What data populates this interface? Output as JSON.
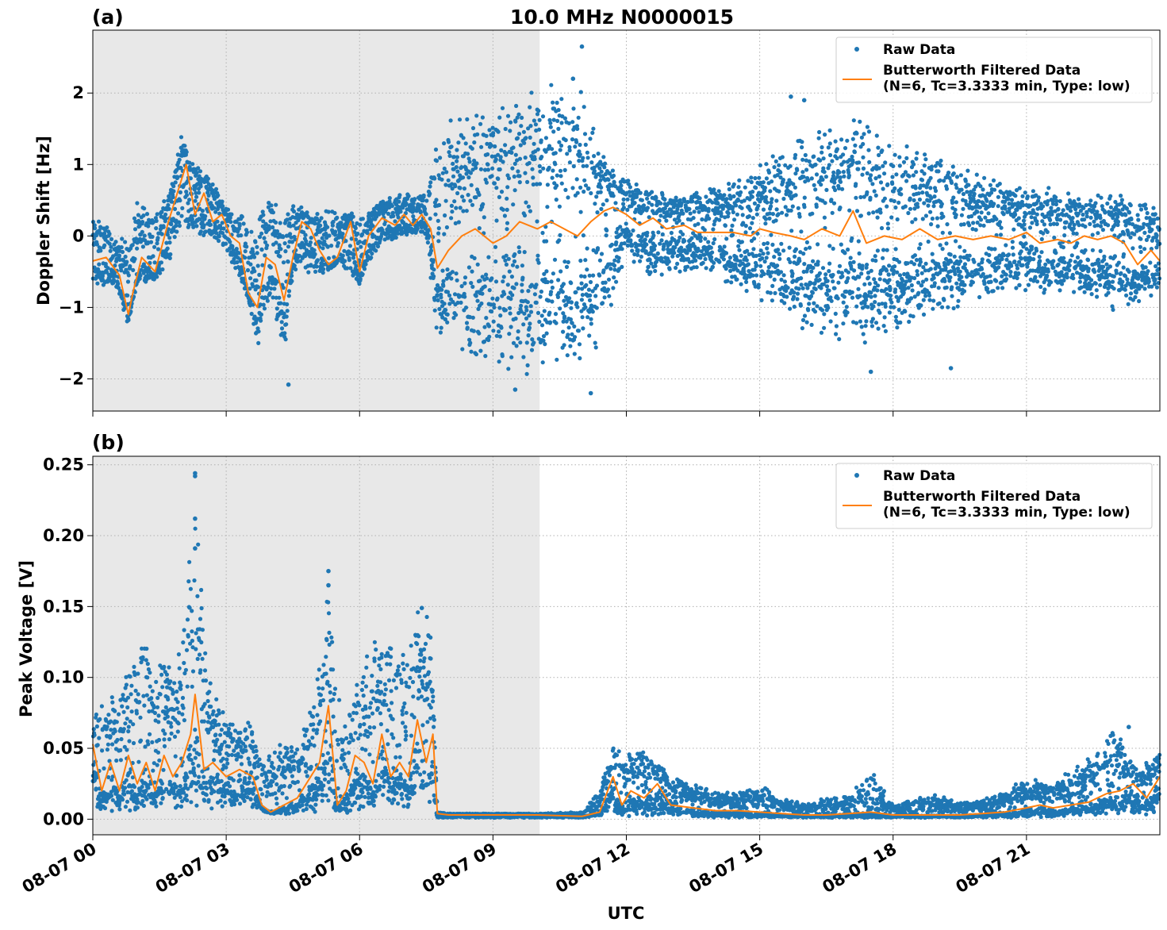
{
  "figure": {
    "title": "10.0 MHz N0000015",
    "xlabel": "UTC"
  },
  "chart_data": [
    {
      "type": "scatter",
      "panel_label": "(a)",
      "title": "10.0 MHz N0000015",
      "ylabel": "Doppler Shift [Hz]",
      "xlabel": "",
      "x_unit": "hours since 08-07 00:00 UTC",
      "xlim": [
        0,
        24
      ],
      "ylim": [
        -2.45,
        2.88
      ],
      "yticks": [
        -2,
        -1,
        0,
        1,
        2
      ],
      "ytick_labels": [
        "−2",
        "−1",
        "0",
        "1",
        "2"
      ],
      "xticks": [
        0,
        3,
        6,
        9,
        12,
        15,
        18,
        21
      ],
      "grid": true,
      "shaded_night_region": [
        0,
        10.05
      ],
      "legend": {
        "placement": "upper right",
        "entries": [
          "Raw Data",
          "Butterworth Filtered Data\n(N=6, Tc=3.3333 min, Type: low)"
        ]
      },
      "series": [
        {
          "name": "Raw Data",
          "kind": "scatter",
          "color": "#1f77b4",
          "envelope": {
            "x": [
              0,
              0.5,
              0.8,
              1.0,
              1.5,
              1.8,
              2.0,
              2.2,
              2.5,
              2.8,
              3.0,
              3.5,
              3.7,
              4.0,
              4.3,
              4.5,
              5.0,
              5.5,
              6.0,
              6.5,
              7.0,
              7.5,
              7.7,
              8.0,
              8.5,
              9.0,
              9.5,
              10.0,
              10.5,
              11.0,
              11.5,
              12.0,
              12.5,
              13.0,
              13.5,
              14.0,
              14.5,
              15.0,
              15.5,
              16.0,
              16.5,
              17.0,
              17.5,
              18.0,
              18.5,
              19.0,
              19.5,
              20.0,
              20.5,
              21.0,
              21.5,
              22.0,
              22.5,
              23.0,
              23.5,
              24.0
            ],
            "y_min": [
              -0.7,
              -0.7,
              -1.25,
              -0.7,
              -0.6,
              -0.3,
              0.1,
              0.0,
              0.0,
              -0.1,
              -0.2,
              -0.9,
              -1.6,
              -0.8,
              -1.9,
              -0.5,
              -0.6,
              -0.4,
              -0.7,
              -0.1,
              0.0,
              0.0,
              -1.3,
              -1.5,
              -1.8,
              -1.9,
              -2.0,
              -1.9,
              -1.8,
              -1.9,
              -1.5,
              -0.3,
              -0.6,
              -0.5,
              -0.5,
              -0.6,
              -0.7,
              -0.9,
              -1.0,
              -1.4,
              -1.5,
              -1.5,
              -1.5,
              -1.3,
              -1.2,
              -1.2,
              -1.0,
              -0.9,
              -0.8,
              -0.8,
              -0.8,
              -0.8,
              -0.9,
              -1.1,
              -1.0,
              -0.8
            ],
            "y_max": [
              0.35,
              0.0,
              0.0,
              0.5,
              0.4,
              0.8,
              1.5,
              1.1,
              0.9,
              0.7,
              0.4,
              0.3,
              0.2,
              0.6,
              0.3,
              0.5,
              0.3,
              0.4,
              0.3,
              0.5,
              0.6,
              0.6,
              1.3,
              1.7,
              1.8,
              1.9,
              2.0,
              2.1,
              2.2,
              2.1,
              1.1,
              0.8,
              0.7,
              0.6,
              0.6,
              0.7,
              0.8,
              1.0,
              1.2,
              1.5,
              1.6,
              1.7,
              1.7,
              1.4,
              1.2,
              1.2,
              1.0,
              0.9,
              0.8,
              0.7,
              0.7,
              0.6,
              0.6,
              0.6,
              0.5,
              0.4
            ]
          },
          "outliers": [
            [
              11.0,
              2.65
            ],
            [
              10.8,
              2.2
            ],
            [
              15.7,
              1.95
            ],
            [
              16.0,
              1.9
            ],
            [
              17.5,
              -1.9
            ],
            [
              19.3,
              -1.85
            ],
            [
              4.4,
              -2.08
            ],
            [
              9.5,
              -2.15
            ],
            [
              11.2,
              -2.2
            ]
          ]
        },
        {
          "name": "Butterworth Filtered Data\n(N=6, Tc=3.3333 min, Type: low)",
          "kind": "line",
          "color": "#ff7f0e",
          "x": [
            0,
            0.3,
            0.6,
            0.8,
            0.9,
            1.1,
            1.4,
            1.7,
            1.9,
            2.1,
            2.3,
            2.5,
            2.7,
            2.9,
            3.1,
            3.3,
            3.5,
            3.7,
            3.9,
            4.1,
            4.3,
            4.5,
            4.7,
            4.9,
            5.1,
            5.3,
            5.5,
            5.8,
            6.0,
            6.2,
            6.5,
            6.8,
            7.0,
            7.2,
            7.4,
            7.6,
            7.75,
            8.0,
            8.3,
            8.6,
            9.0,
            9.3,
            9.6,
            10.0,
            10.3,
            10.6,
            10.9,
            11.2,
            11.5,
            11.7,
            12.0,
            12.3,
            12.6,
            12.9,
            13.3,
            13.6,
            14.0,
            14.4,
            14.8,
            15.0,
            15.3,
            15.7,
            16.0,
            16.4,
            16.8,
            17.1,
            17.4,
            17.8,
            18.2,
            18.6,
            19.0,
            19.4,
            19.8,
            20.2,
            20.6,
            21.0,
            21.3,
            21.7,
            22.0,
            22.3,
            22.6,
            22.9,
            23.2,
            23.5,
            23.8,
            24.0
          ],
          "y": [
            -0.35,
            -0.3,
            -0.55,
            -1.1,
            -0.8,
            -0.3,
            -0.5,
            0.2,
            0.6,
            1.0,
            0.3,
            0.6,
            0.2,
            0.3,
            0.0,
            -0.1,
            -0.8,
            -1.0,
            -0.3,
            -0.4,
            -0.9,
            -0.3,
            0.2,
            0.1,
            -0.2,
            -0.4,
            -0.3,
            0.2,
            -0.5,
            0.0,
            0.25,
            0.15,
            0.3,
            0.15,
            0.3,
            0.1,
            -0.45,
            -0.2,
            0.0,
            0.1,
            -0.1,
            0.0,
            0.2,
            0.1,
            0.2,
            0.1,
            0.0,
            0.2,
            0.35,
            0.4,
            0.3,
            0.15,
            0.25,
            0.1,
            0.15,
            0.05,
            0.05,
            0.05,
            0.0,
            0.1,
            0.05,
            0.0,
            -0.05,
            0.1,
            0.0,
            0.35,
            -0.1,
            0.0,
            -0.05,
            0.1,
            -0.05,
            0.0,
            -0.05,
            0.0,
            -0.05,
            0.05,
            -0.1,
            -0.05,
            -0.1,
            0.0,
            -0.05,
            0.0,
            -0.1,
            -0.4,
            -0.2,
            -0.35
          ]
        }
      ]
    },
    {
      "type": "scatter",
      "panel_label": "(b)",
      "title": "",
      "ylabel": "Peak Voltage [V]",
      "xlabel": "UTC",
      "x_unit": "hours since 08-07 00:00 UTC",
      "xlim": [
        0,
        24
      ],
      "ylim": [
        -0.011,
        0.256
      ],
      "yticks": [
        0.0,
        0.05,
        0.1,
        0.15,
        0.2,
        0.25
      ],
      "ytick_labels": [
        "0.00",
        "0.05",
        "0.10",
        "0.15",
        "0.20",
        "0.25"
      ],
      "xticks": [
        0,
        3,
        6,
        9,
        12,
        15,
        18,
        21
      ],
      "xtick_labels": [
        "08-07 00",
        "08-07 03",
        "08-07 06",
        "08-07 09",
        "08-07 12",
        "08-07 15",
        "08-07 18",
        "08-07 21"
      ],
      "grid": true,
      "shaded_night_region": [
        0,
        10.05
      ],
      "legend": {
        "placement": "upper right",
        "entries": [
          "Raw Data",
          "Butterworth Filtered Data\n(N=6, Tc=3.3333 min, Type: low)"
        ]
      },
      "series": [
        {
          "name": "Raw Data",
          "kind": "scatter",
          "color": "#1f77b4",
          "envelope": {
            "x": [
              0,
              0.5,
              1.0,
              1.5,
              2.0,
              2.3,
              2.6,
              3.0,
              3.5,
              3.9,
              4.3,
              4.7,
              5.0,
              5.3,
              5.6,
              6.0,
              6.3,
              6.7,
              7.0,
              7.3,
              7.6,
              7.75,
              8.0,
              9.0,
              10.0,
              11.0,
              11.4,
              11.7,
              12.0,
              12.3,
              12.7,
              13.0,
              13.5,
              14.0,
              14.5,
              15.0,
              15.5,
              16.0,
              16.5,
              17.0,
              17.5,
              18.0,
              18.5,
              19.0,
              19.5,
              20.0,
              20.5,
              21.0,
              21.5,
              22.0,
              22.5,
              23.0,
              23.5,
              24.0
            ],
            "y_min": [
              0.005,
              0.006,
              0.006,
              0.006,
              0.008,
              0.008,
              0.007,
              0.008,
              0.008,
              0.004,
              0.003,
              0.003,
              0.005,
              0.006,
              0.004,
              0.006,
              0.008,
              0.008,
              0.008,
              0.008,
              0.008,
              0.001,
              0.001,
              0.001,
              0.001,
              0.001,
              0.002,
              0.003,
              0.002,
              0.003,
              0.002,
              0.002,
              0.002,
              0.001,
              0.001,
              0.001,
              0.001,
              0.001,
              0.001,
              0.001,
              0.001,
              0.001,
              0.001,
              0.001,
              0.001,
              0.001,
              0.001,
              0.001,
              0.001,
              0.002,
              0.002,
              0.002,
              0.003,
              0.004
            ],
            "y_max": [
              0.08,
              0.09,
              0.13,
              0.11,
              0.12,
              0.24,
              0.1,
              0.07,
              0.07,
              0.045,
              0.06,
              0.06,
              0.09,
              0.175,
              0.07,
              0.1,
              0.13,
              0.13,
              0.12,
              0.15,
              0.15,
              0.005,
              0.004,
              0.004,
              0.004,
              0.005,
              0.02,
              0.055,
              0.045,
              0.055,
              0.04,
              0.03,
              0.025,
              0.02,
              0.018,
              0.025,
              0.015,
              0.012,
              0.015,
              0.018,
              0.035,
              0.01,
              0.015,
              0.018,
              0.012,
              0.014,
              0.02,
              0.03,
              0.025,
              0.035,
              0.045,
              0.065,
              0.035,
              0.05
            ]
          },
          "outliers": [
            [
              2.3,
              0.244
            ],
            [
              2.3,
              0.242
            ],
            [
              2.3,
              0.212
            ],
            [
              2.3,
              0.191
            ],
            [
              5.3,
              0.175
            ],
            [
              5.3,
              0.165
            ],
            [
              7.4,
              0.149
            ],
            [
              23.3,
              0.065
            ]
          ]
        },
        {
          "name": "Butterworth Filtered Data\n(N=6, Tc=3.3333 min, Type: low)",
          "kind": "line",
          "color": "#ff7f0e",
          "x": [
            0,
            0.2,
            0.4,
            0.6,
            0.8,
            1.0,
            1.2,
            1.4,
            1.6,
            1.8,
            2.0,
            2.2,
            2.3,
            2.5,
            2.7,
            3.0,
            3.3,
            3.6,
            3.8,
            4.0,
            4.3,
            4.6,
            4.9,
            5.1,
            5.3,
            5.5,
            5.7,
            5.9,
            6.1,
            6.3,
            6.5,
            6.7,
            6.9,
            7.1,
            7.3,
            7.5,
            7.65,
            7.75,
            8.0,
            9.0,
            10.0,
            11.0,
            11.4,
            11.7,
            11.9,
            12.1,
            12.4,
            12.7,
            13.0,
            13.5,
            14.0,
            14.5,
            15.0,
            15.5,
            16.0,
            16.5,
            17.0,
            17.5,
            18.0,
            18.5,
            19.0,
            19.5,
            20.0,
            20.5,
            21.0,
            21.3,
            21.6,
            22.0,
            22.4,
            22.8,
            23.1,
            23.4,
            23.7,
            24.0
          ],
          "y": [
            0.053,
            0.02,
            0.04,
            0.02,
            0.045,
            0.025,
            0.04,
            0.02,
            0.045,
            0.03,
            0.04,
            0.06,
            0.088,
            0.035,
            0.04,
            0.03,
            0.035,
            0.03,
            0.01,
            0.005,
            0.01,
            0.015,
            0.03,
            0.04,
            0.08,
            0.01,
            0.02,
            0.045,
            0.04,
            0.025,
            0.06,
            0.03,
            0.04,
            0.03,
            0.07,
            0.04,
            0.06,
            0.004,
            0.003,
            0.003,
            0.003,
            0.002,
            0.005,
            0.03,
            0.01,
            0.02,
            0.015,
            0.025,
            0.01,
            0.008,
            0.006,
            0.006,
            0.005,
            0.004,
            0.003,
            0.003,
            0.004,
            0.005,
            0.003,
            0.003,
            0.003,
            0.003,
            0.004,
            0.005,
            0.008,
            0.01,
            0.008,
            0.01,
            0.012,
            0.018,
            0.02,
            0.025,
            0.015,
            0.03
          ]
        }
      ]
    }
  ]
}
